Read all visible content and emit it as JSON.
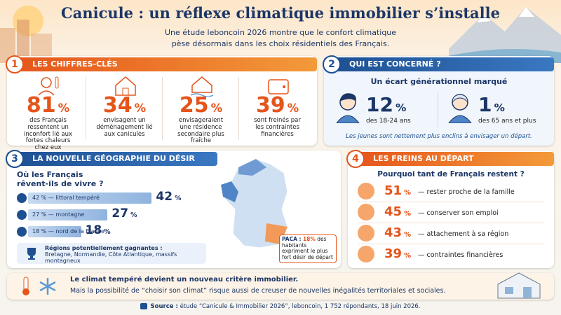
{
  "header": {
    "title": "Canicule : un réflexe climatique immobilier s’installe",
    "subtitle": [
      "Une étude leboncoin 2026 montre que le confort climatique",
      "pèse désormais dans les choix résidentiels des Français."
    ]
  },
  "key_figures": {
    "number": "1",
    "title": "LES CHIFFRES-CLÉS",
    "items": [
      {
        "value": 81,
        "unit": "%",
        "text": "des Français ressentent un inconfort lié aux fortes chaleurs chez eux"
      },
      {
        "value": 34,
        "unit": "%",
        "text": "envisagent un déménagement lié aux canicules"
      },
      {
        "value": 25,
        "unit": "%",
        "text": "envisageraient une résidence secondaire plus fraîche"
      },
      {
        "value": 39,
        "unit": "%",
        "text": "sont freinés par les contraintes financières"
      }
    ]
  },
  "concerned": {
    "number": "2",
    "title": "QUI EST CONCERNÉ ?",
    "subtitle": "Un écart générationnel marqué",
    "groups": [
      {
        "value": 12,
        "unit": "%",
        "label": "des 18-24 ans"
      },
      {
        "value": 1,
        "unit": "%",
        "label": "des 65 ans et plus"
      }
    ],
    "note": "Les jeunes sont nettement plus enclins à envisager un départ."
  },
  "geography": {
    "number": "3",
    "title": "LA NOUVELLE GÉOGRAPHIE DU DÉSIR CLIMATIQUE",
    "question": [
      "Où les Français",
      "rêvent-ils de vivre ?"
    ],
    "bars": [
      {
        "label": "42 % — littoral tempéré",
        "value": 42,
        "unit": "%"
      },
      {
        "label": "27 % — montagne",
        "value": 27,
        "unit": "%"
      },
      {
        "label": "18 % — nord de la France",
        "value": 18,
        "unit": "%"
      }
    ],
    "regions_title": "Régions potentiellement gagnantes :",
    "regions": "Bretagne, Normandie, Côte Atlantique, massifs montagneux",
    "paca": {
      "title": "PACA :",
      "value": 18,
      "unit": "%",
      "text1": "des habitants",
      "text2": "expriment le plus fort désir de départ"
    }
  },
  "brakes": {
    "number": "4",
    "title": "LES FREINS AU DÉPART",
    "question": "Pourquoi tant de Français restent ?",
    "items": [
      {
        "value": 51,
        "unit": "%",
        "label": "— rester proche de la famille"
      },
      {
        "value": 45,
        "unit": "%",
        "label": "— conserver son emploi"
      },
      {
        "value": 43,
        "unit": "%",
        "label": "— attachement à sa région"
      },
      {
        "value": 39,
        "unit": "%",
        "label": "— contraintes financières"
      }
    ]
  },
  "footer": {
    "lead": "Le climat tempéré devient un nouveau critère immobilier.",
    "text": "Mais la possibilité de “choisir son climat” risque aussi de creuser de nouvelles inégalités territoriales et sociales.",
    "source_label": "Source :",
    "source": "étude “Canicule & Immobilier 2026”, leboncoin, 1 752 répondants, 18 juin 2026."
  }
}
